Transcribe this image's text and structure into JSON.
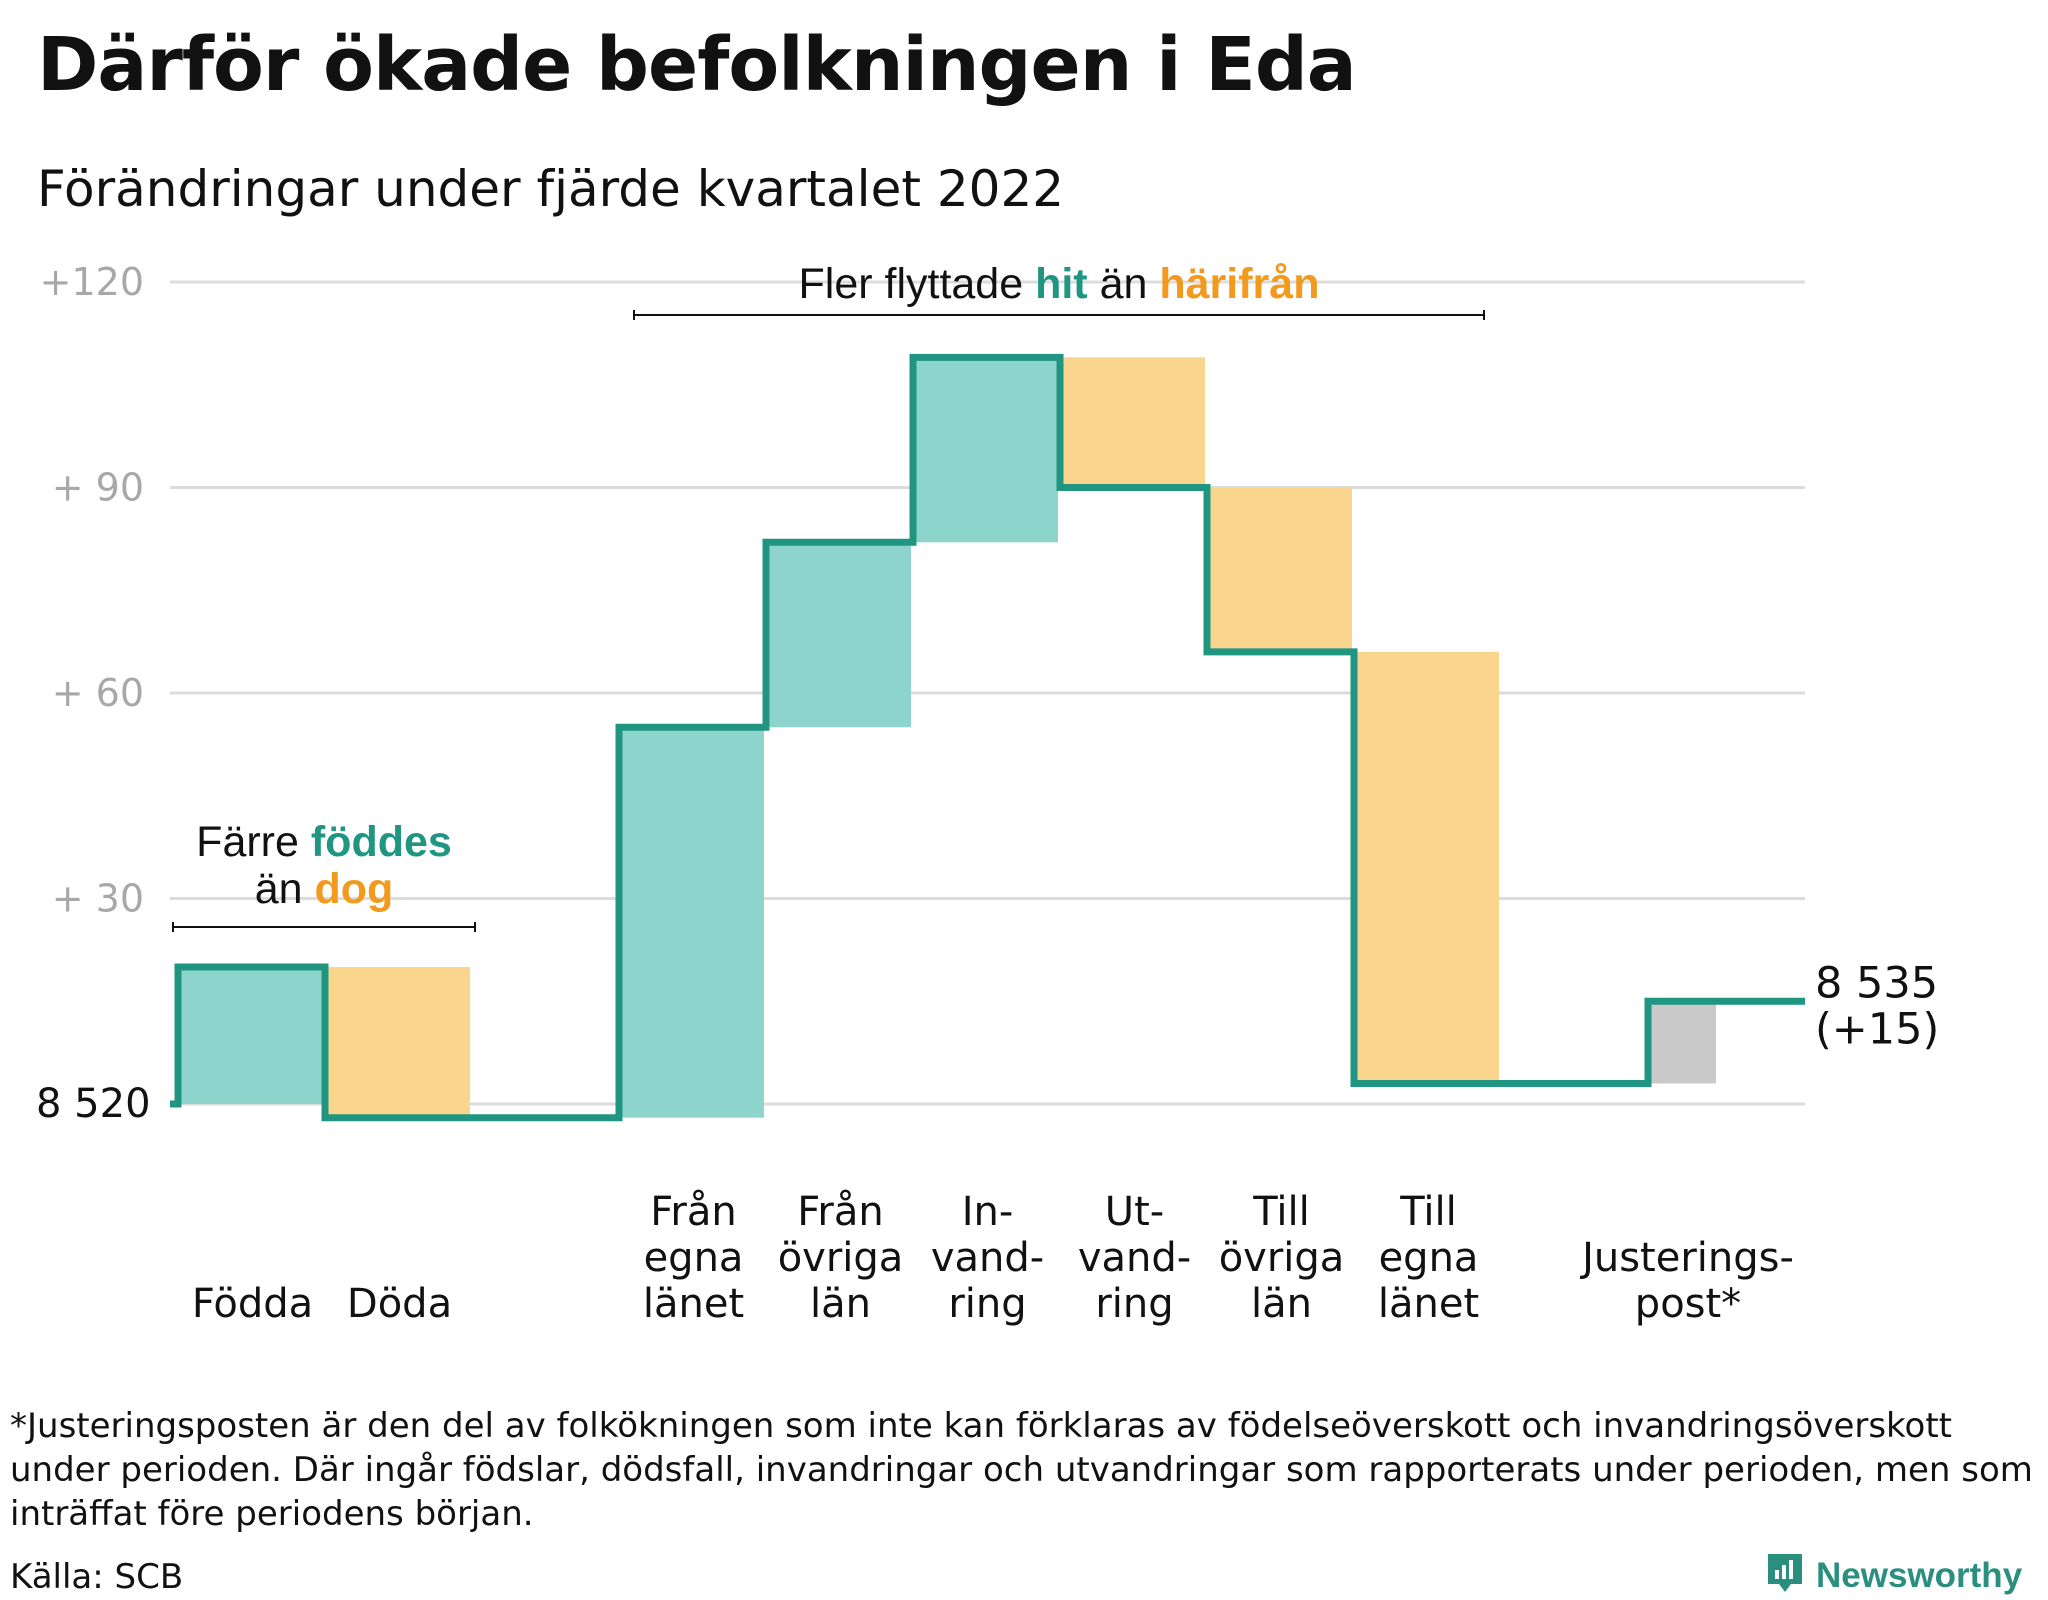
{
  "title": "Därför ökade befolkningen i Eda",
  "subtitle": "Förändringar under fjärde kvartalet 2022",
  "colors": {
    "teal_line": "#1f9582",
    "teal_fill": "#8dd5cc",
    "orange_fill": "#fad58e",
    "orange_text": "#f29a1e",
    "gray_fill": "#c9c9c9",
    "grid": "#dcdcdc",
    "axis_label": "#a8a8a8"
  },
  "chart_data": {
    "type": "waterfall",
    "baseline": 8520,
    "baseline_label": "8 520",
    "y_ticks": [
      {
        "value": 30,
        "label": "+ 30"
      },
      {
        "value": 60,
        "label": "+ 60"
      },
      {
        "value": 90,
        "label": "+ 90"
      },
      {
        "value": 120,
        "label": "+120"
      }
    ],
    "ylim": [
      0,
      120
    ],
    "steps": [
      {
        "name": "Födda",
        "label_lines": [
          "Födda"
        ],
        "change": 20,
        "kind": "in"
      },
      {
        "name": "Döda",
        "label_lines": [
          "Döda"
        ],
        "change": -22,
        "kind": "out"
      },
      {
        "name": "",
        "label_lines": [],
        "change": 0,
        "kind": "gap"
      },
      {
        "name": "Från egna länet",
        "label_lines": [
          "Från",
          "egna",
          "länet"
        ],
        "change": 57,
        "kind": "in"
      },
      {
        "name": "Från övriga län",
        "label_lines": [
          "Från",
          "övriga",
          "län"
        ],
        "change": 27,
        "kind": "in"
      },
      {
        "name": "Invandring",
        "label_lines": [
          "In-",
          "vand-",
          "ring"
        ],
        "change": 27,
        "kind": "in"
      },
      {
        "name": "Utvandring",
        "label_lines": [
          "Ut-",
          "vand-",
          "ring"
        ],
        "change": -19,
        "kind": "out"
      },
      {
        "name": "Till övriga län",
        "label_lines": [
          "Till",
          "övriga",
          "län"
        ],
        "change": -24,
        "kind": "out"
      },
      {
        "name": "Till egna länet",
        "label_lines": [
          "Till",
          "egna",
          "länet"
        ],
        "change": -63,
        "kind": "out"
      },
      {
        "name": "",
        "label_lines": [],
        "change": 0,
        "kind": "gap"
      },
      {
        "name": "Justeringspost*",
        "label_lines": [
          "Justerings-",
          "post*"
        ],
        "change": 12,
        "kind": "adjust"
      }
    ],
    "end_value_label": "8 535",
    "end_change_label": "(+15)",
    "annotations": [
      {
        "id": "births",
        "line1": [
          {
            "text": "Färre ",
            "style": "plain"
          },
          {
            "text": "föddes",
            "style": "teal"
          }
        ],
        "line2": [
          {
            "text": "än ",
            "style": "plain"
          },
          {
            "text": "dog",
            "style": "orange"
          }
        ],
        "span": [
          0,
          1
        ]
      },
      {
        "id": "moves",
        "line1": [
          {
            "text": "Fler flyttade ",
            "style": "plain"
          },
          {
            "text": "hit",
            "style": "teal"
          },
          {
            "text": " än ",
            "style": "plain"
          },
          {
            "text": "härifrån",
            "style": "orange"
          }
        ],
        "span": [
          3,
          8
        ]
      }
    ]
  },
  "footnote": "*Justeringsposten är den del av folkökningen som inte kan förklaras av födelseöverskott och invandringsöverskott under perioden. Där ingår födslar, dödsfall, invandringar och utvandringar som rapporterats under perioden, men som inträffat före periodens början.",
  "source": "Källa: SCB",
  "brand": {
    "name": "Newsworthy",
    "icon": "newsworthy-logo-icon"
  }
}
